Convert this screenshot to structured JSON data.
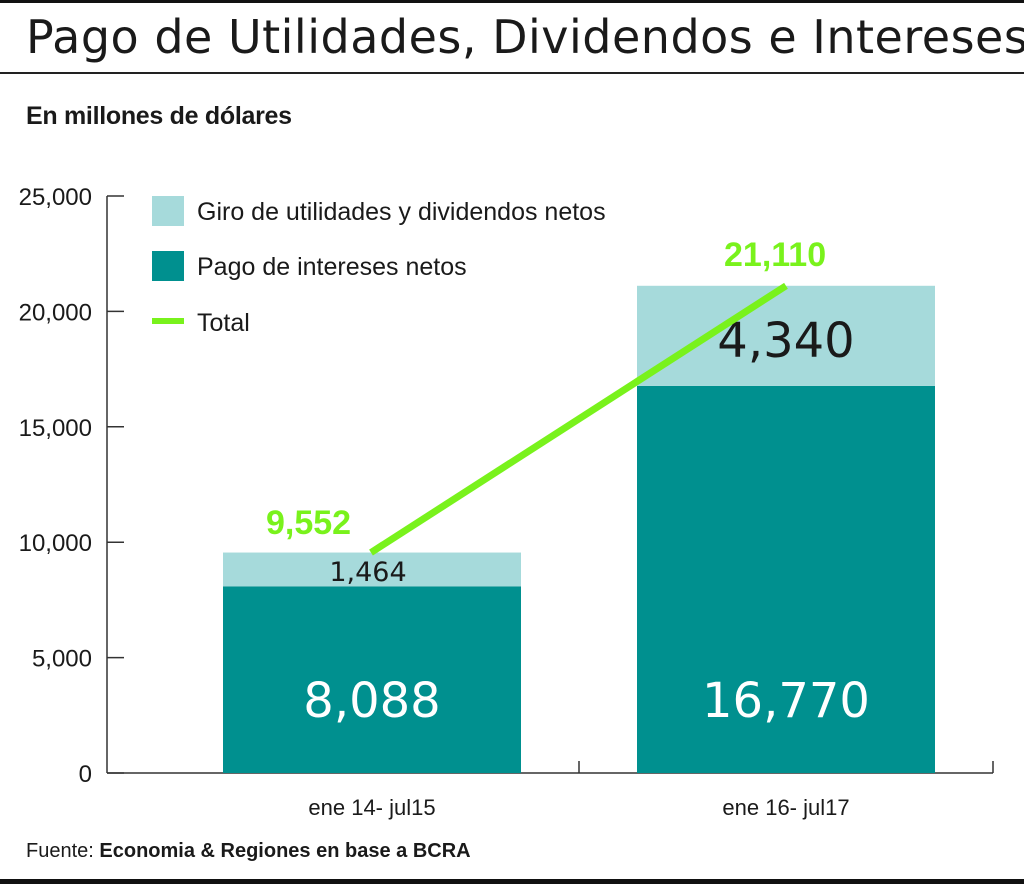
{
  "title": "Pago de Utilidades, Dividendos e Intereses.",
  "subtitle": "En millones de dólares",
  "source_label": "Fuente:",
  "source_text": "Economia & Regiones en base a BCRA",
  "colors": {
    "dividends": "#a6dadb",
    "interest": "#00908f",
    "total_line": "#79f21c",
    "axis": "#333333",
    "text": "#1a1a1a"
  },
  "chart_data": {
    "type": "bar",
    "stacked": true,
    "categories": [
      "ene 14- jul15",
      "ene 16- jul17"
    ],
    "series": [
      {
        "name": "Pago de intereses netos",
        "values": [
          8088,
          16770
        ],
        "labels": [
          "8,088",
          "16,770"
        ]
      },
      {
        "name": "Giro de utilidades y dividendos netos",
        "values": [
          1464,
          4340
        ],
        "labels": [
          "1,464",
          "4,340"
        ]
      }
    ],
    "line": {
      "name": "Total",
      "values": [
        9552,
        21110
      ],
      "labels": [
        "9,552",
        "21,110"
      ]
    },
    "yticks": [
      "0",
      "5,000",
      "10,000",
      "15,000",
      "20,000",
      "25,000"
    ],
    "ytick_values": [
      0,
      5000,
      10000,
      15000,
      20000,
      25000
    ],
    "ylim": [
      0,
      25000
    ],
    "legend": [
      "Giro de utilidades y dividendos netos",
      "Pago de intereses netos",
      "Total"
    ],
    "legend_position": "top-left",
    "grid": false
  }
}
